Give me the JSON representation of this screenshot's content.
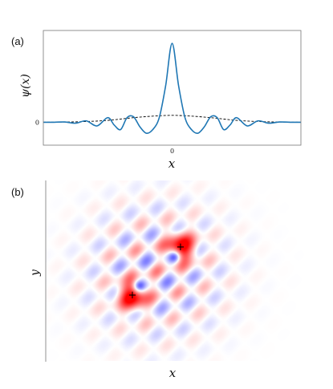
{
  "chart_data": [
    {
      "panel": "(a)",
      "type": "line",
      "xlabel": "x",
      "ylabel": "ψ(x)",
      "x_ticks": [
        "0"
      ],
      "y_ticks": [
        "0"
      ],
      "xlim": [
        -6,
        6
      ],
      "ylim": [
        -0.25,
        1.0
      ],
      "grid": false,
      "legend": "none",
      "series": [
        {
          "style": "solid",
          "color": "#1f77b4",
          "x": [
            -6,
            -5.5,
            -5,
            -4.5,
            -4,
            -3.5,
            -3,
            -2.7,
            -2.4,
            -2.1,
            -1.8,
            -1.5,
            -1.2,
            -0.9,
            -0.6,
            -0.3,
            0,
            0.3,
            0.6,
            0.9,
            1.2,
            1.5,
            1.8,
            2.1,
            2.4,
            2.7,
            3,
            3.5,
            4,
            4.5,
            5,
            5.5,
            6
          ],
          "y": [
            0,
            0,
            0.003,
            -0.01,
            0.015,
            -0.04,
            0.05,
            -0.03,
            -0.08,
            0.05,
            0.06,
            -0.05,
            -0.12,
            -0.08,
            0.05,
            0.4,
            0.86,
            0.4,
            0.05,
            -0.08,
            -0.12,
            -0.05,
            0.06,
            0.05,
            -0.08,
            -0.03,
            0.05,
            -0.04,
            0.015,
            -0.01,
            0.003,
            0,
            0
          ]
        },
        {
          "style": "dashed",
          "color": "#000000",
          "x": [
            -6,
            -5,
            -4,
            -3,
            -2,
            -1,
            0,
            1,
            2,
            3,
            4,
            5,
            6
          ],
          "y": [
            0,
            0.002,
            0.008,
            0.02,
            0.045,
            0.065,
            0.075,
            0.065,
            0.045,
            0.02,
            0.008,
            0.002,
            0
          ]
        }
      ]
    },
    {
      "panel": "(b)",
      "type": "heatmap",
      "xlabel": "x",
      "ylabel": "y",
      "colormap": [
        "#0000ff",
        "#ffffff",
        "#ff0000"
      ],
      "markers": [
        {
          "symbol": "+",
          "x": -1,
          "y": -1
        },
        {
          "symbol": "+",
          "x": 1,
          "y": 1
        }
      ]
    }
  ]
}
